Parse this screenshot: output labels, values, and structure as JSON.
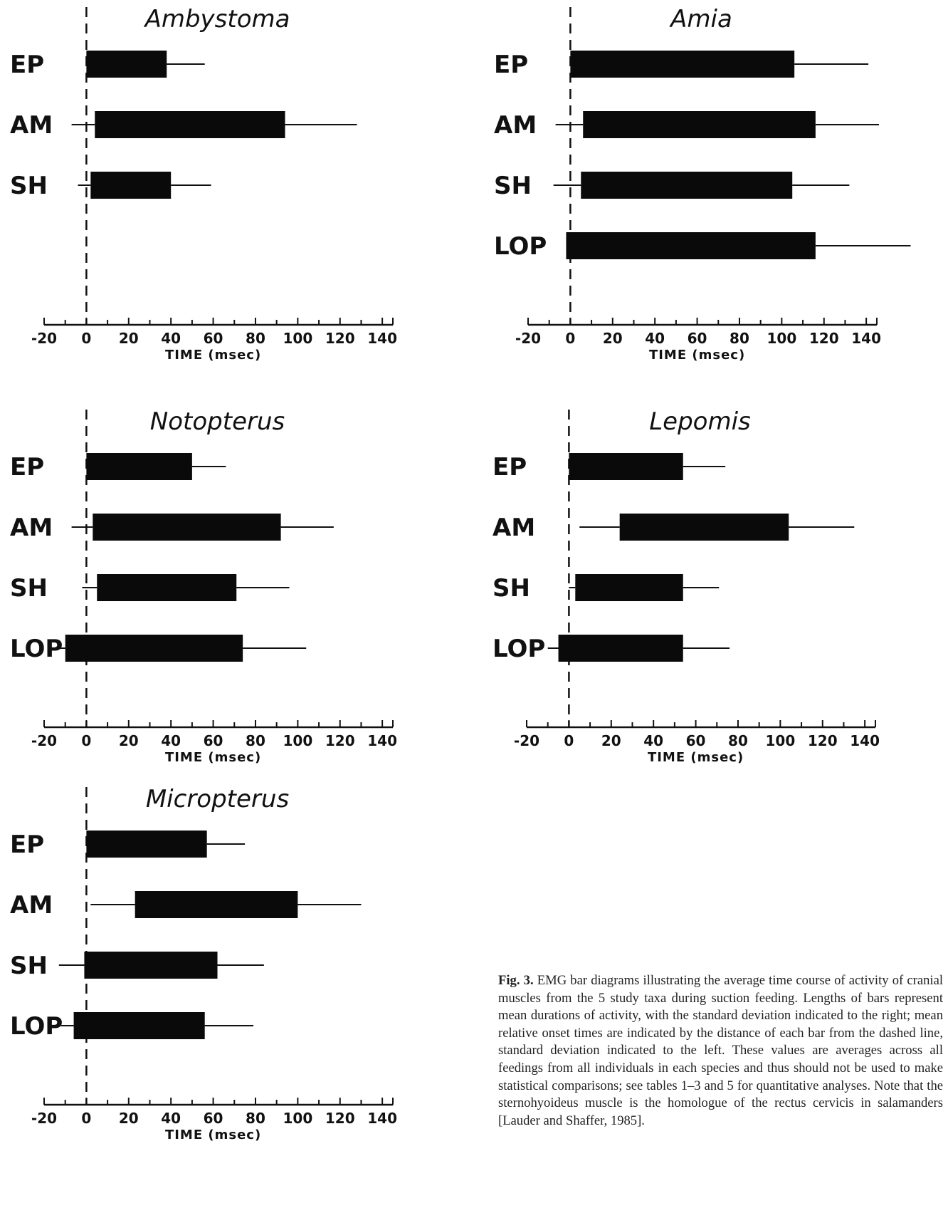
{
  "chart_data": [
    {
      "type": "bar",
      "title": "Ambystoma",
      "xlabel": "TIME (msec)",
      "xlim": [
        -20,
        145
      ],
      "xticks": [
        "-20",
        "0",
        "20",
        "40",
        "60",
        "80",
        "100",
        "120",
        "140"
      ],
      "rows": [
        {
          "label": "EP",
          "onset": 0,
          "offset": 38,
          "onset_sd": 0,
          "offset_sd": 18
        },
        {
          "label": "AM",
          "onset": 4,
          "offset": 94,
          "onset_sd": 11,
          "offset_sd": 34
        },
        {
          "label": "SH",
          "onset": 2,
          "offset": 40,
          "onset_sd": 6,
          "offset_sd": 19
        }
      ]
    },
    {
      "type": "bar",
      "title": "Amia",
      "xlabel": "TIME (msec)",
      "xlim": [
        -20,
        145
      ],
      "xticks": [
        "-20",
        "0",
        "20",
        "40",
        "60",
        "80",
        "100",
        "120",
        "140"
      ],
      "rows": [
        {
          "label": "EP",
          "onset": 0,
          "offset": 106,
          "onset_sd": 0,
          "offset_sd": 35
        },
        {
          "label": "AM",
          "onset": 6,
          "offset": 116,
          "onset_sd": 13,
          "offset_sd": 30
        },
        {
          "label": "SH",
          "onset": 5,
          "offset": 105,
          "onset_sd": 13,
          "offset_sd": 27
        },
        {
          "label": "LOP",
          "onset": -2,
          "offset": 116,
          "onset_sd": 0,
          "offset_sd": 45
        }
      ]
    },
    {
      "type": "bar",
      "title": "Notopterus",
      "xlabel": "TIME (msec)",
      "xlim": [
        -20,
        145
      ],
      "xticks": [
        "-20",
        "0",
        "20",
        "40",
        "60",
        "80",
        "100",
        "120",
        "140"
      ],
      "rows": [
        {
          "label": "EP",
          "onset": 0,
          "offset": 50,
          "onset_sd": 0,
          "offset_sd": 16
        },
        {
          "label": "AM",
          "onset": 3,
          "offset": 92,
          "onset_sd": 10,
          "offset_sd": 25
        },
        {
          "label": "SH",
          "onset": 5,
          "offset": 71,
          "onset_sd": 7,
          "offset_sd": 25
        },
        {
          "label": "LOP",
          "onset": -10,
          "offset": 74,
          "onset_sd": 4,
          "offset_sd": 30
        }
      ]
    },
    {
      "type": "bar",
      "title": "Lepomis",
      "xlabel": "TIME (msec)",
      "xlim": [
        -20,
        145
      ],
      "xticks": [
        "-20",
        "0",
        "20",
        "40",
        "60",
        "80",
        "100",
        "120",
        "140"
      ],
      "rows": [
        {
          "label": "EP",
          "onset": 0,
          "offset": 54,
          "onset_sd": 0,
          "offset_sd": 20
        },
        {
          "label": "AM",
          "onset": 24,
          "offset": 104,
          "onset_sd": 19,
          "offset_sd": 31
        },
        {
          "label": "SH",
          "onset": 3,
          "offset": 54,
          "onset_sd": 3,
          "offset_sd": 17
        },
        {
          "label": "LOP",
          "onset": -5,
          "offset": 54,
          "onset_sd": 5,
          "offset_sd": 22
        }
      ]
    },
    {
      "type": "bar",
      "title": "Micropterus",
      "xlabel": "TIME (msec)",
      "xlim": [
        -20,
        145
      ],
      "xticks": [
        "-20",
        "0",
        "20",
        "40",
        "60",
        "80",
        "100",
        "120",
        "140"
      ],
      "rows": [
        {
          "label": "EP",
          "onset": 0,
          "offset": 57,
          "onset_sd": 0,
          "offset_sd": 18
        },
        {
          "label": "AM",
          "onset": 23,
          "offset": 100,
          "onset_sd": 21,
          "offset_sd": 30
        },
        {
          "label": "SH",
          "onset": -1,
          "offset": 62,
          "onset_sd": 12,
          "offset_sd": 22
        },
        {
          "label": "LOP",
          "onset": -6,
          "offset": 56,
          "onset_sd": 6,
          "offset_sd": 23
        }
      ]
    }
  ],
  "caption": {
    "label": "Fig. 3.",
    "text": "EMG bar diagrams illustrating the average time course of activity of cranial muscles from the 5 study taxa during suction feeding. Lengths of bars represent mean durations of activity, with the standard deviation indicated to the right; mean relative onset times are indicated by the distance of each bar from the dashed line, standard deviation indicated to the left. These values are averages across all feedings from all individuals in each species and thus should not be used to make statistical comparisons; see tables 1–3 and 5 for quantitative analyses. Note that the sternohyoideus muscle is the homologue of the rectus cervicis in salamanders [Lauder and Shaffer, 1985]."
  }
}
